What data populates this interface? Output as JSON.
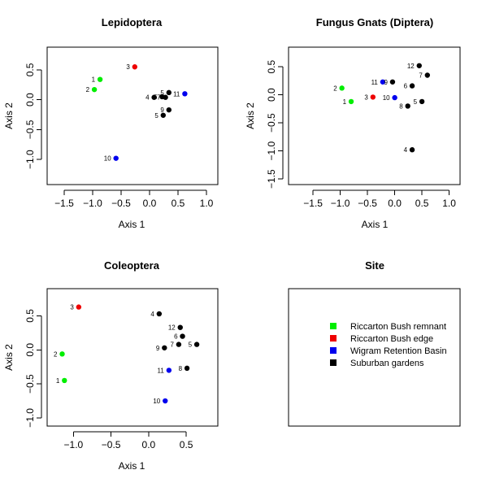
{
  "chart_data": [
    {
      "type": "scatter",
      "title": "Lepidoptera",
      "xlabel": "Axis 1",
      "ylabel": "Axis 2",
      "xlim": [
        -1.8,
        1.2
      ],
      "ylim": [
        -1.42,
        0.88
      ],
      "xticks": [
        -1.5,
        -1.0,
        -0.5,
        0.0,
        0.5,
        1.0
      ],
      "xtick_labels": [
        "−1.5",
        "−1.0",
        "−0.5",
        "0.0",
        "0.5",
        "1.0"
      ],
      "yticks": [
        -1.0,
        -0.5,
        0.0,
        0.5
      ],
      "ytick_labels": [
        "−1.0",
        "−0.5",
        "0.0",
        "0.5"
      ],
      "points": [
        {
          "label": "1",
          "x": -0.87,
          "y": 0.34,
          "group": "remnant"
        },
        {
          "label": "2",
          "x": -0.97,
          "y": 0.17,
          "group": "remnant"
        },
        {
          "label": "3",
          "x": -0.26,
          "y": 0.55,
          "group": "edge"
        },
        {
          "label": "4",
          "x": 0.08,
          "y": 0.04,
          "group": "suburban"
        },
        {
          "label": "5",
          "x": 0.34,
          "y": 0.12,
          "group": "suburban"
        },
        {
          "label": "6",
          "x": 0.22,
          "y": 0.05,
          "group": "suburban"
        },
        {
          "label": "7",
          "x": 0.28,
          "y": 0.04,
          "group": "suburban"
        },
        {
          "label": "9",
          "x": 0.34,
          "y": -0.17,
          "group": "suburban"
        },
        {
          "label": "5",
          "x": 0.24,
          "y": -0.26,
          "group": "suburban"
        },
        {
          "label": "11",
          "x": 0.62,
          "y": 0.1,
          "group": "wigram"
        },
        {
          "label": "10",
          "x": -0.59,
          "y": -0.98,
          "group": "wigram"
        }
      ]
    },
    {
      "type": "scatter",
      "title": "Fungus Gnats (Diptera)",
      "xlabel": "Axis 1",
      "ylabel": "Axis 2",
      "xlim": [
        -1.95,
        1.2
      ],
      "ylim": [
        -1.6,
        0.85
      ],
      "xticks": [
        -1.5,
        -1.0,
        -0.5,
        0.0,
        0.5,
        1.0
      ],
      "xtick_labels": [
        "−1.5",
        "−1.0",
        "−0.5",
        "0.0",
        "0.5",
        "1.0"
      ],
      "yticks": [
        -1.5,
        -1.0,
        -0.5,
        0.0,
        0.5
      ],
      "ytick_labels": [
        "−1.5",
        "−1.0",
        "−0.5",
        "0.0",
        "0.5"
      ],
      "points": [
        {
          "label": "2",
          "x": -0.97,
          "y": 0.12,
          "group": "remnant"
        },
        {
          "label": "1",
          "x": -0.8,
          "y": -0.12,
          "group": "remnant"
        },
        {
          "label": "3",
          "x": -0.4,
          "y": -0.04,
          "group": "edge"
        },
        {
          "label": "11",
          "x": -0.22,
          "y": 0.23,
          "group": "wigram"
        },
        {
          "label": "9",
          "x": -0.04,
          "y": 0.23,
          "group": "suburban"
        },
        {
          "label": "10",
          "x": 0.0,
          "y": -0.05,
          "group": "wigram"
        },
        {
          "label": "12",
          "x": 0.45,
          "y": 0.52,
          "group": "suburban"
        },
        {
          "label": "7",
          "x": 0.6,
          "y": 0.35,
          "group": "suburban"
        },
        {
          "label": "6",
          "x": 0.32,
          "y": 0.16,
          "group": "suburban"
        },
        {
          "label": "5",
          "x": 0.5,
          "y": -0.12,
          "group": "suburban"
        },
        {
          "label": "8",
          "x": 0.24,
          "y": -0.2,
          "group": "suburban"
        },
        {
          "label": "4",
          "x": 0.32,
          "y": -0.98,
          "group": "suburban"
        }
      ]
    },
    {
      "type": "scatter",
      "title": "Coleoptera",
      "xlabel": "Axis 1",
      "ylabel": "Axis 2",
      "xlim": [
        -1.35,
        0.92
      ],
      "ylim": [
        -1.12,
        0.9
      ],
      "xticks": [
        -1.0,
        -0.5,
        0.0,
        0.5
      ],
      "xtick_labels": [
        "−1.0",
        "−0.5",
        "0.0",
        "0.5"
      ],
      "yticks": [
        -1.0,
        -0.5,
        0.0,
        0.5
      ],
      "ytick_labels": [
        "−1.0",
        "−0.5",
        "0.0",
        "0.5"
      ],
      "points": [
        {
          "label": "3",
          "x": -0.93,
          "y": 0.63,
          "group": "edge"
        },
        {
          "label": "2",
          "x": -1.15,
          "y": -0.06,
          "group": "remnant"
        },
        {
          "label": "1",
          "x": -1.12,
          "y": -0.45,
          "group": "remnant"
        },
        {
          "label": "4",
          "x": 0.14,
          "y": 0.53,
          "group": "suburban"
        },
        {
          "label": "12",
          "x": 0.42,
          "y": 0.33,
          "group": "suburban"
        },
        {
          "label": "6",
          "x": 0.45,
          "y": 0.2,
          "group": "suburban"
        },
        {
          "label": "5",
          "x": 0.64,
          "y": 0.08,
          "group": "suburban"
        },
        {
          "label": "7",
          "x": 0.4,
          "y": 0.08,
          "group": "suburban"
        },
        {
          "label": "9",
          "x": 0.21,
          "y": 0.03,
          "group": "suburban"
        },
        {
          "label": "11",
          "x": 0.27,
          "y": -0.3,
          "group": "wigram"
        },
        {
          "label": "8",
          "x": 0.51,
          "y": -0.27,
          "group": "suburban"
        },
        {
          "label": "10",
          "x": 0.22,
          "y": -0.75,
          "group": "wigram"
        }
      ]
    }
  ],
  "legend": {
    "title": "Site",
    "items": [
      {
        "key": "remnant",
        "label": "Riccarton Bush remnant",
        "color": "#00ee00"
      },
      {
        "key": "edge",
        "label": "Riccarton Bush edge",
        "color": "#ee0000"
      },
      {
        "key": "wigram",
        "label": "Wigram Retention Basin",
        "color": "#0000ee"
      },
      {
        "key": "suburban",
        "label": "Suburban gardens",
        "color": "#000000"
      }
    ]
  }
}
